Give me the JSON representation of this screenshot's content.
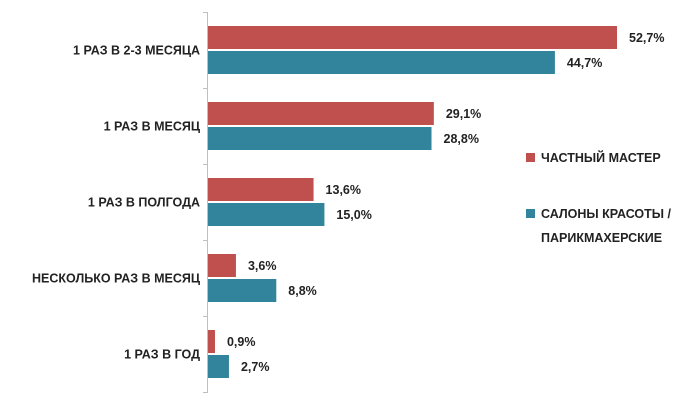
{
  "chart_data": {
    "type": "bar",
    "orientation": "horizontal",
    "categories": [
      "1 РАЗ В 2-3 МЕСЯЦА",
      "1 РАЗ В МЕСЯЦ",
      "1 РАЗ В ПОЛГОДА",
      "НЕСКОЛЬКО РАЗ В МЕСЯЦ",
      "1 РАЗ В ГОД"
    ],
    "series": [
      {
        "name": "ЧАСТНЫЙ МАСТЕР",
        "color": "#c0504d",
        "values": [
          52.7,
          29.1,
          13.6,
          3.6,
          0.9
        ],
        "labels": [
          "52,7%",
          "29,1%",
          "13,6%",
          "3,6%",
          "0,9%"
        ]
      },
      {
        "name": "САЛОНЫ КРАСОТЫ / ПАРИКМАХЕРСКИЕ",
        "color": "#31849b",
        "values": [
          44.7,
          28.8,
          15.0,
          8.8,
          2.7
        ],
        "labels": [
          "44,7%",
          "28,8%",
          "15,0%",
          "8,8%",
          "2,7%"
        ]
      }
    ],
    "legend": {
      "position": "right",
      "entries": [
        {
          "lines": [
            "ЧАСТНЫЙ МАСТЕР"
          ],
          "color": "#c0504d"
        },
        {
          "lines": [
            "САЛОНЫ КРАСОТЫ /",
            "ПАРИКМАХЕРСКИЕ"
          ],
          "color": "#31849b"
        }
      ]
    },
    "xlim": [
      0,
      55
    ],
    "grid": false,
    "title": "",
    "xlabel": "",
    "ylabel": ""
  }
}
